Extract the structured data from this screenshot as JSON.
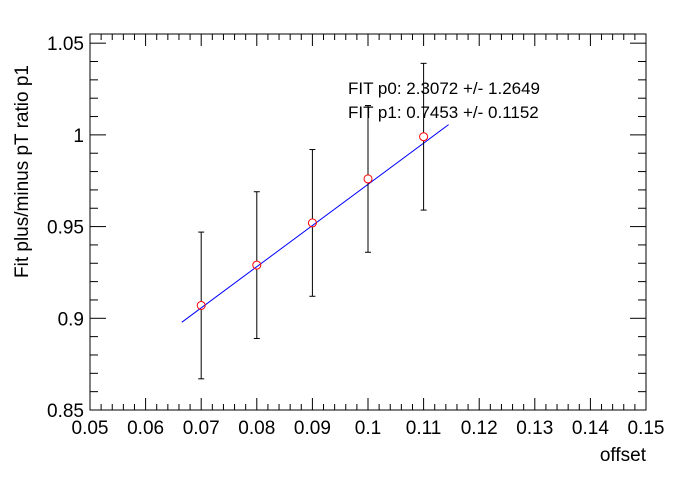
{
  "chart_data": {
    "type": "scatter",
    "title": "",
    "xlabel": "offset",
    "ylabel": "Fit plus/minus pT ratio p1",
    "xlim": [
      0.05,
      0.15
    ],
    "ylim": [
      0.85,
      1.055
    ],
    "grid": false,
    "x_ticks": [
      0.05,
      0.06,
      0.07,
      0.08,
      0.09,
      0.1,
      0.11,
      0.12,
      0.13,
      0.14,
      0.15
    ],
    "x_tick_labels": [
      "0.05",
      "0.06",
      "0.07",
      "0.08",
      "0.09",
      "0.1",
      "0.11",
      "0.12",
      "0.13",
      "0.14",
      "0.15"
    ],
    "y_ticks": [
      0.85,
      0.9,
      0.95,
      1.0,
      1.05
    ],
    "y_tick_labels": [
      "0.85",
      "0.9",
      "0.95",
      "1",
      "1.05"
    ],
    "series": [
      {
        "type": "points_with_errors",
        "x": [
          0.07,
          0.08,
          0.09,
          0.1,
          0.11
        ],
        "y": [
          0.907,
          0.929,
          0.952,
          0.976,
          0.999
        ],
        "yerr": [
          0.04,
          0.04,
          0.04,
          0.04,
          0.04
        ],
        "marker_color": "#ff0000",
        "error_color": "#000000"
      },
      {
        "type": "fit_line",
        "x": [
          0.0665,
          0.1145
        ],
        "y": [
          0.8978,
          1.0056
        ],
        "color": "#0000ff"
      }
    ],
    "annotations": [
      "FIT p0: 2.3072 +/- 1.2649",
      "FIT p1: 0.7453 +/- 0.1152"
    ]
  }
}
